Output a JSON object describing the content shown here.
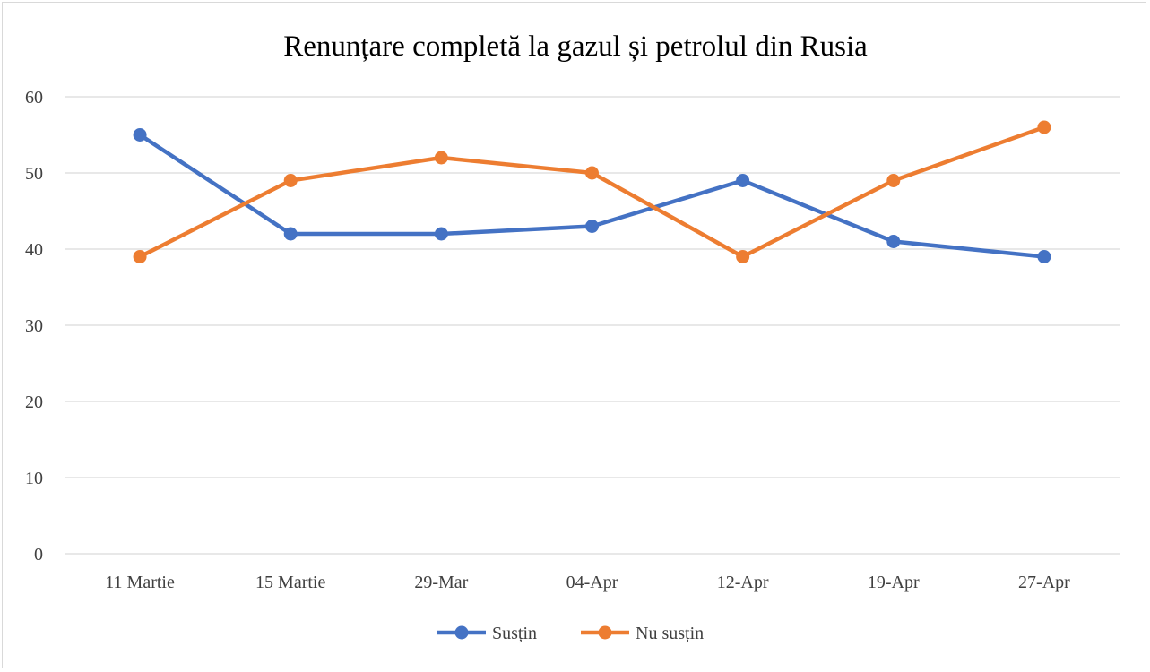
{
  "chart_data": {
    "type": "line",
    "title": "Renunțare completă la gazul și petrolul din Rusia",
    "xlabel": "",
    "ylabel": "",
    "categories": [
      "11 Martie",
      "15 Martie",
      "29-Mar",
      "04-Apr",
      "12-Apr",
      "19-Apr",
      "27-Apr"
    ],
    "series": [
      {
        "name": "Susțin",
        "color": "#4472c4",
        "values": [
          55,
          42,
          42,
          43,
          49,
          41,
          39
        ]
      },
      {
        "name": "Nu susțin",
        "color": "#ed7d31",
        "values": [
          39,
          49,
          52,
          50,
          39,
          49,
          56
        ]
      }
    ],
    "ylim": [
      0,
      60
    ],
    "yticks": [
      0,
      10,
      20,
      30,
      40,
      50,
      60
    ],
    "grid": true,
    "legend_position": "bottom"
  }
}
